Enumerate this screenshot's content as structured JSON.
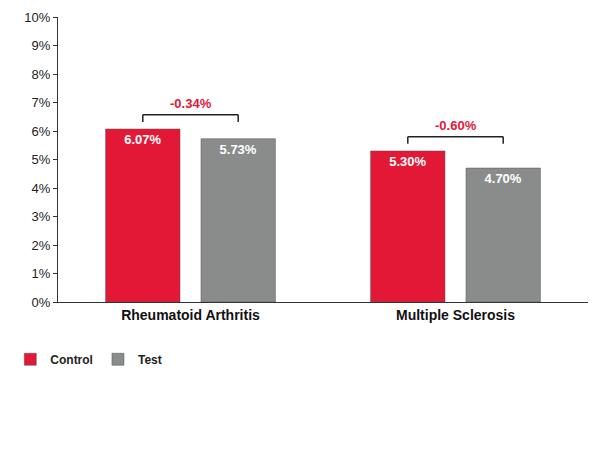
{
  "chart_data": {
    "type": "bar",
    "categories": [
      "Rheumatoid Arthritis",
      "Multiple Sclerosis"
    ],
    "series": [
      {
        "name": "Control",
        "color": "#e31837",
        "values": [
          6.07,
          5.3
        ],
        "value_labels": [
          "6.07%",
          "5.30%"
        ]
      },
      {
        "name": "Test",
        "color": "#898c8b",
        "values": [
          5.73,
          4.7
        ],
        "value_labels": [
          "5.73%",
          "4.70%"
        ]
      }
    ],
    "ylim": [
      0,
      10
    ],
    "yticks": [
      {
        "value": 0,
        "label": "0%"
      },
      {
        "value": 1,
        "label": "1%"
      },
      {
        "value": 2,
        "label": "2%"
      },
      {
        "value": 3,
        "label": "3%"
      },
      {
        "value": 4,
        "label": "4%"
      },
      {
        "value": 5,
        "label": "5%"
      },
      {
        "value": 6,
        "label": "6%"
      },
      {
        "value": 7,
        "label": "7%"
      },
      {
        "value": 8,
        "label": "8%"
      },
      {
        "value": 9,
        "label": "9%"
      },
      {
        "value": 10,
        "label": "10%"
      }
    ],
    "grid": false,
    "legend": "bottom left",
    "data_labels": true,
    "annotations": [
      {
        "category": "Rheumatoid Arthritis",
        "text": "-0.34%",
        "color": "#e31837"
      },
      {
        "category": "Multiple Sclerosis",
        "text": "-0.60%",
        "color": "#e31837"
      }
    ]
  }
}
